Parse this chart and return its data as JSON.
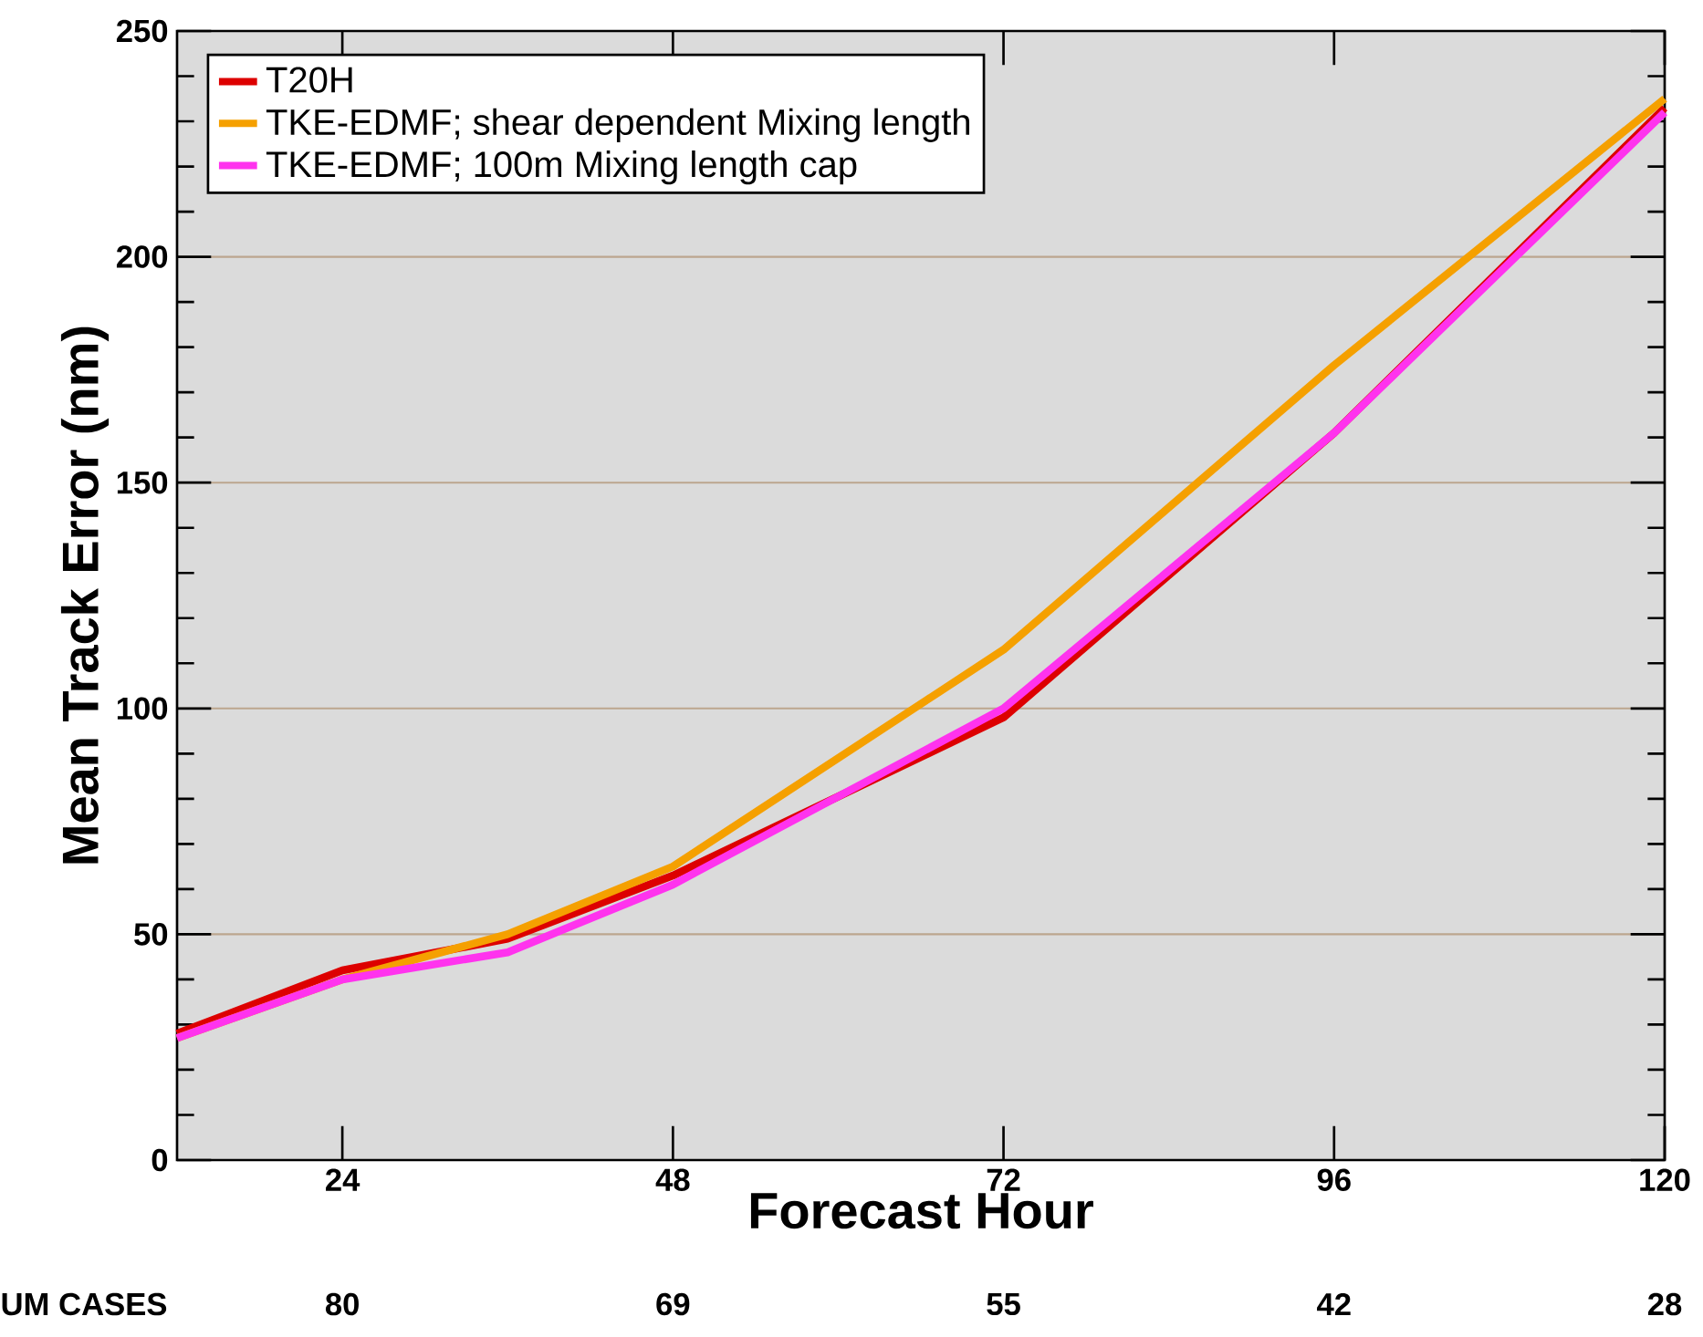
{
  "chart_data": {
    "type": "line",
    "ylabel": "Mean  Track Error  (nm)",
    "xlabel": "Forecast Hour",
    "x": [
      12,
      24,
      36,
      48,
      72,
      96,
      120
    ],
    "series": [
      {
        "name": "T20H",
        "color": "#dd0000",
        "values": [
          28,
          42,
          49,
          63,
          98,
          161,
          233
        ]
      },
      {
        "name": "TKE-EDMF; shear dependent Mixing length",
        "color": "#f5a000",
        "values": [
          27,
          40,
          50,
          65,
          113,
          176,
          235
        ]
      },
      {
        "name": "TKE-EDMF; 100m Mixing length cap",
        "color": "#ff33ee",
        "values": [
          27,
          40,
          46,
          61,
          100,
          161,
          232
        ]
      }
    ],
    "xlim": [
      12,
      120
    ],
    "xticks": [
      24,
      48,
      72,
      96,
      120
    ],
    "ylim": [
      0,
      250
    ],
    "yticks": [
      0,
      50,
      100,
      150,
      200,
      250
    ],
    "grid": "y",
    "legend": "top left",
    "line_style": "solid",
    "annotations": [
      "UM CASES",
      "80",
      "69",
      "55",
      "42",
      "28"
    ]
  }
}
